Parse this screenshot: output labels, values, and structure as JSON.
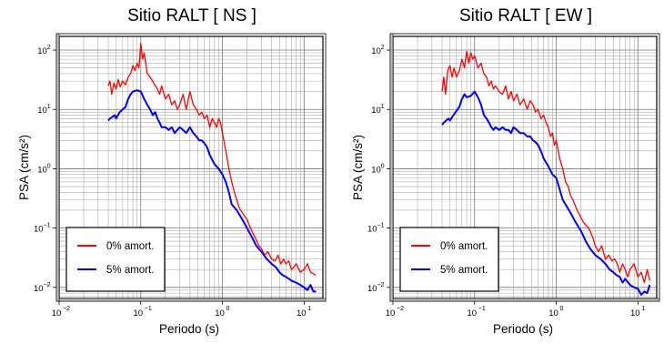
{
  "chart_data": [
    {
      "type": "line",
      "title": "Sitio RALT [ NS ]",
      "xlabel": "Periodo (s)",
      "ylabel": "PSA (cm/s²)",
      "x_scale": "log",
      "y_scale": "log",
      "xlim": [
        0.01,
        17
      ],
      "ylim": [
        0.0065,
        170
      ],
      "x_ticks": [
        {
          "base": "10",
          "exp": "−2"
        },
        {
          "base": "10",
          "exp": "−1"
        },
        {
          "base": "10",
          "exp": "0"
        },
        {
          "base": "10",
          "exp": "1"
        }
      ],
      "y_ticks": [
        {
          "base": "10",
          "exp": "−2"
        },
        {
          "base": "10",
          "exp": "−1"
        },
        {
          "base": "10",
          "exp": "0"
        },
        {
          "base": "10",
          "exp": "1"
        },
        {
          "base": "10",
          "exp": "2"
        }
      ],
      "grid": true,
      "legend_position": "bottom-left",
      "series": [
        {
          "name": "0% amort.",
          "color": "#ff0000",
          "x": [
            0.04,
            0.042,
            0.044,
            0.047,
            0.05,
            0.053,
            0.056,
            0.06,
            0.065,
            0.07,
            0.075,
            0.08,
            0.085,
            0.09,
            0.095,
            0.1,
            0.105,
            0.11,
            0.12,
            0.13,
            0.14,
            0.15,
            0.16,
            0.17,
            0.18,
            0.2,
            0.22,
            0.24,
            0.26,
            0.28,
            0.3,
            0.33,
            0.36,
            0.4,
            0.44,
            0.48,
            0.52,
            0.56,
            0.6,
            0.65,
            0.7,
            0.75,
            0.8,
            0.85,
            0.9,
            0.95,
            1.0,
            1.1,
            1.2,
            1.3,
            1.4,
            1.5,
            1.6,
            1.8,
            2.0,
            2.2,
            2.5,
            2.8,
            3.0,
            3.3,
            3.6,
            4.0,
            4.4,
            4.8,
            5.2,
            5.6,
            6.0,
            6.5,
            7.0,
            7.5,
            8.0,
            9.0,
            10,
            11,
            12,
            13,
            14
          ],
          "y": [
            25,
            30,
            18,
            28,
            22,
            32,
            24,
            30,
            26,
            35,
            40,
            55,
            45,
            60,
            50,
            130,
            70,
            90,
            40,
            35,
            30,
            25,
            22,
            18,
            25,
            15,
            18,
            12,
            14,
            10,
            12,
            18,
            10,
            20,
            12,
            10,
            8,
            9,
            7,
            8,
            5,
            7,
            6,
            5,
            7,
            6,
            4,
            2,
            1,
            0.6,
            0.4,
            0.3,
            0.22,
            0.17,
            0.14,
            0.1,
            0.07,
            0.05,
            0.045,
            0.035,
            0.04,
            0.03,
            0.028,
            0.035,
            0.025,
            0.03,
            0.025,
            0.028,
            0.02,
            0.022,
            0.025,
            0.018,
            0.02,
            0.025,
            0.018,
            0.017,
            0.016
          ]
        },
        {
          "name": "5% amort.",
          "color": "#0000ff",
          "x": [
            0.04,
            0.042,
            0.045,
            0.048,
            0.05,
            0.055,
            0.06,
            0.065,
            0.07,
            0.075,
            0.08,
            0.09,
            0.1,
            0.11,
            0.12,
            0.13,
            0.14,
            0.15,
            0.16,
            0.17,
            0.18,
            0.2,
            0.22,
            0.24,
            0.26,
            0.28,
            0.3,
            0.33,
            0.36,
            0.4,
            0.44,
            0.48,
            0.52,
            0.56,
            0.6,
            0.65,
            0.7,
            0.8,
            0.9,
            1.0,
            1.1,
            1.2,
            1.3,
            1.5,
            1.7,
            2.0,
            2.3,
            2.6,
            3.0,
            3.5,
            4.0,
            4.5,
            5.0,
            5.5,
            6.0,
            6.5,
            7.0,
            8.0,
            9.0,
            10,
            11,
            12,
            13,
            14
          ],
          "y": [
            6.5,
            7,
            7.5,
            8,
            7,
            9,
            10,
            11,
            15,
            18,
            20,
            21,
            20,
            15,
            12,
            10,
            8,
            9,
            7,
            6,
            5,
            5,
            4.5,
            5,
            4,
            4.5,
            5,
            4.5,
            4,
            5,
            4,
            3.5,
            3,
            3,
            2.7,
            2.3,
            1.7,
            1.2,
            1,
            0.8,
            0.6,
            0.4,
            0.25,
            0.2,
            0.15,
            0.1,
            0.07,
            0.05,
            0.04,
            0.03,
            0.025,
            0.022,
            0.018,
            0.016,
            0.015,
            0.014,
            0.013,
            0.012,
            0.011,
            0.01,
            0.009,
            0.011,
            0.0085,
            0.0085
          ]
        }
      ]
    },
    {
      "type": "line",
      "title": "Sitio RALT [ EW ]",
      "xlabel": "Periodo (s)",
      "ylabel": "PSA (cm/s²)",
      "x_scale": "log",
      "y_scale": "log",
      "xlim": [
        0.01,
        17
      ],
      "ylim": [
        0.0065,
        170
      ],
      "x_ticks": [
        {
          "base": "10",
          "exp": "−2"
        },
        {
          "base": "10",
          "exp": "−1"
        },
        {
          "base": "10",
          "exp": "0"
        },
        {
          "base": "10",
          "exp": "1"
        }
      ],
      "y_ticks": [
        {
          "base": "10",
          "exp": "−2"
        },
        {
          "base": "10",
          "exp": "−1"
        },
        {
          "base": "10",
          "exp": "0"
        },
        {
          "base": "10",
          "exp": "1"
        },
        {
          "base": "10",
          "exp": "2"
        }
      ],
      "grid": true,
      "legend_position": "bottom-left",
      "series": [
        {
          "name": "0% amort.",
          "color": "#ff0000",
          "x": [
            0.04,
            0.042,
            0.044,
            0.047,
            0.05,
            0.053,
            0.056,
            0.06,
            0.065,
            0.07,
            0.075,
            0.08,
            0.085,
            0.09,
            0.095,
            0.1,
            0.11,
            0.12,
            0.13,
            0.14,
            0.15,
            0.16,
            0.17,
            0.18,
            0.2,
            0.22,
            0.24,
            0.26,
            0.28,
            0.3,
            0.33,
            0.36,
            0.4,
            0.44,
            0.48,
            0.52,
            0.56,
            0.6,
            0.65,
            0.7,
            0.75,
            0.8,
            0.85,
            0.9,
            0.95,
            1.0,
            1.1,
            1.2,
            1.3,
            1.4,
            1.5,
            1.6,
            1.8,
            2.0,
            2.2,
            2.5,
            2.8,
            3.0,
            3.3,
            3.6,
            4.0,
            4.4,
            4.8,
            5.2,
            5.6,
            6.0,
            6.5,
            7.0,
            7.5,
            8.0,
            9.0,
            10,
            11,
            12,
            13,
            14
          ],
          "y": [
            20,
            35,
            18,
            45,
            55,
            35,
            50,
            35,
            45,
            70,
            50,
            95,
            60,
            90,
            70,
            80,
            50,
            60,
            40,
            35,
            25,
            30,
            22,
            25,
            20,
            18,
            25,
            15,
            20,
            14,
            18,
            12,
            15,
            10,
            14,
            12,
            9,
            10,
            7,
            8,
            6,
            5,
            3.5,
            4,
            2.5,
            3,
            1.5,
            1,
            0.6,
            0.5,
            0.35,
            0.3,
            0.2,
            0.15,
            0.12,
            0.1,
            0.07,
            0.05,
            0.04,
            0.05,
            0.03,
            0.035,
            0.028,
            0.03,
            0.025,
            0.018,
            0.025,
            0.02,
            0.015,
            0.02,
            0.025,
            0.015,
            0.018,
            0.012,
            0.02,
            0.013
          ]
        },
        {
          "name": "5% amort.",
          "color": "#0000ff",
          "x": [
            0.04,
            0.042,
            0.045,
            0.048,
            0.05,
            0.055,
            0.06,
            0.065,
            0.07,
            0.075,
            0.08,
            0.09,
            0.1,
            0.11,
            0.12,
            0.13,
            0.14,
            0.15,
            0.16,
            0.17,
            0.18,
            0.2,
            0.22,
            0.24,
            0.26,
            0.28,
            0.3,
            0.33,
            0.36,
            0.4,
            0.44,
            0.48,
            0.52,
            0.56,
            0.6,
            0.65,
            0.7,
            0.8,
            0.9,
            1.0,
            1.1,
            1.2,
            1.3,
            1.5,
            1.7,
            2.0,
            2.3,
            2.6,
            3.0,
            3.5,
            4.0,
            4.5,
            5.0,
            5.5,
            6.0,
            6.5,
            7.0,
            8.0,
            9.0,
            10,
            11,
            12,
            13,
            14
          ],
          "y": [
            5.5,
            6,
            6.5,
            7,
            6.5,
            8,
            9.5,
            11,
            15,
            18,
            16,
            17,
            20,
            16,
            12,
            8,
            7,
            6,
            5,
            4.5,
            5,
            4.5,
            5,
            4.5,
            4.5,
            4,
            5,
            4.5,
            4,
            4,
            3.5,
            3.5,
            3,
            2.8,
            2.5,
            2,
            1.5,
            1.1,
            0.8,
            0.7,
            0.45,
            0.3,
            0.25,
            0.18,
            0.13,
            0.09,
            0.06,
            0.045,
            0.035,
            0.03,
            0.025,
            0.02,
            0.018,
            0.016,
            0.015,
            0.012,
            0.014,
            0.011,
            0.01,
            0.0095,
            0.0075,
            0.0085,
            0.008,
            0.011
          ]
        }
      ]
    }
  ]
}
